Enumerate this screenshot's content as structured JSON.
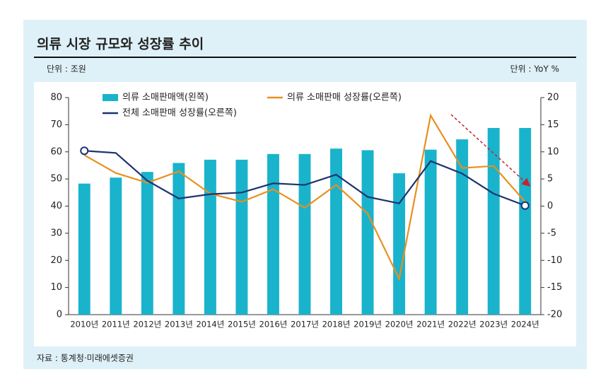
{
  "chart_data": {
    "type": "combo",
    "title": "의류 시장 규모와 성장률 추이",
    "y_unit": "단위 : 조원",
    "y2_unit": "단위 : YoY %",
    "source": "자료 : 통계청·미래에셋증권",
    "categories": [
      "2010년",
      "2011년",
      "2012년",
      "2013년",
      "2014년",
      "2015년",
      "2016년",
      "2017년",
      "2018년",
      "2019년",
      "2020년",
      "2021년",
      "2022년",
      "2023년",
      "2024년"
    ],
    "series": [
      {
        "name": "의류 소매판매액(왼쪽)",
        "type": "bar",
        "color": "#1ab3cc",
        "values": [
          48.3,
          50.5,
          52.6,
          55.9,
          57.1,
          57.1,
          59.2,
          59.2,
          61.2,
          60.6,
          52.1,
          60.8,
          64.6,
          68.8,
          68.8
        ]
      },
      {
        "name": "의류 소매판매 성장률(오른쪽)",
        "type": "line",
        "axis": "y2",
        "color": "#e8901e",
        "values": [
          9.4,
          6.1,
          4.3,
          6.4,
          2.3,
          0.8,
          3.1,
          -0.3,
          3.9,
          -1.4,
          -13.4,
          16.7,
          7.0,
          7.4,
          0.8
        ]
      },
      {
        "name": "전체 소매판매 성장률(오른쪽)",
        "type": "line",
        "axis": "y2",
        "color": "#1d3370",
        "endpoint_markers": true,
        "values": [
          10.2,
          9.8,
          4.7,
          1.4,
          2.2,
          2.5,
          4.2,
          3.9,
          5.8,
          1.7,
          0.5,
          8.3,
          6.0,
          2.3,
          0.1
        ]
      }
    ],
    "ylim": [
      0,
      80
    ],
    "yticks": [
      0,
      10,
      20,
      30,
      40,
      50,
      60,
      70,
      80
    ],
    "y2lim": [
      -20,
      20
    ],
    "y2ticks": [
      -20,
      -15,
      -10,
      -5,
      0,
      5,
      10,
      15,
      20
    ],
    "grid": false
  }
}
